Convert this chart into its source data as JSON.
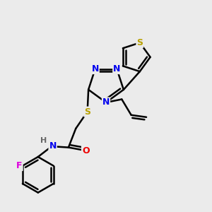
{
  "background_color": "#ebebeb",
  "atom_colors": {
    "S": "#b8a000",
    "N": "#0000ee",
    "O": "#ee0000",
    "F": "#dd00dd",
    "H": "#666666",
    "C": "#000000"
  },
  "bond_color": "#000000",
  "bond_width": 1.8,
  "figsize": [
    3.0,
    3.0
  ],
  "dpi": 100
}
